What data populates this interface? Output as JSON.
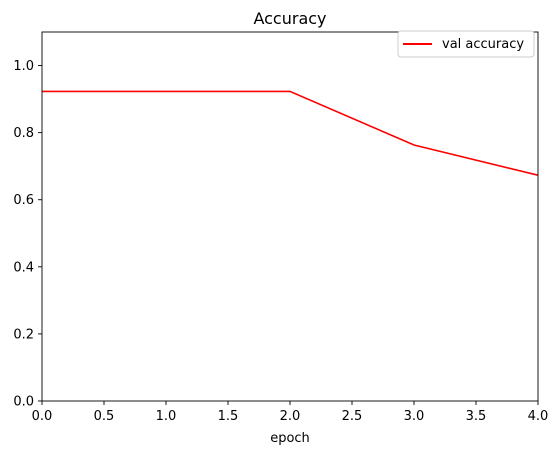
{
  "chart_data": {
    "type": "line",
    "title": "Accuracy",
    "xlabel": "epoch",
    "ylabel": "",
    "xlim": [
      0,
      4
    ],
    "ylim": [
      0,
      1.1
    ],
    "x_ticks": [
      0,
      0.5,
      1,
      1.5,
      2,
      2.5,
      3,
      3.5,
      4
    ],
    "x_tick_labels": [
      "0.0",
      "0.5",
      "1.0",
      "1.5",
      "2.0",
      "2.5",
      "3.0",
      "3.5",
      "4.0"
    ],
    "y_ticks": [
      0,
      0.2,
      0.4,
      0.6,
      0.8,
      1.0
    ],
    "y_tick_labels": [
      "0.0",
      "0.2",
      "0.4",
      "0.6",
      "0.8",
      "1.0"
    ],
    "grid": false,
    "legend_position": "top-right",
    "series": [
      {
        "name": "val accuracy",
        "color": "#ff0000",
        "x": [
          0,
          1,
          2,
          3,
          4
        ],
        "y": [
          0.923,
          0.923,
          0.923,
          0.763,
          0.673
        ]
      }
    ]
  }
}
